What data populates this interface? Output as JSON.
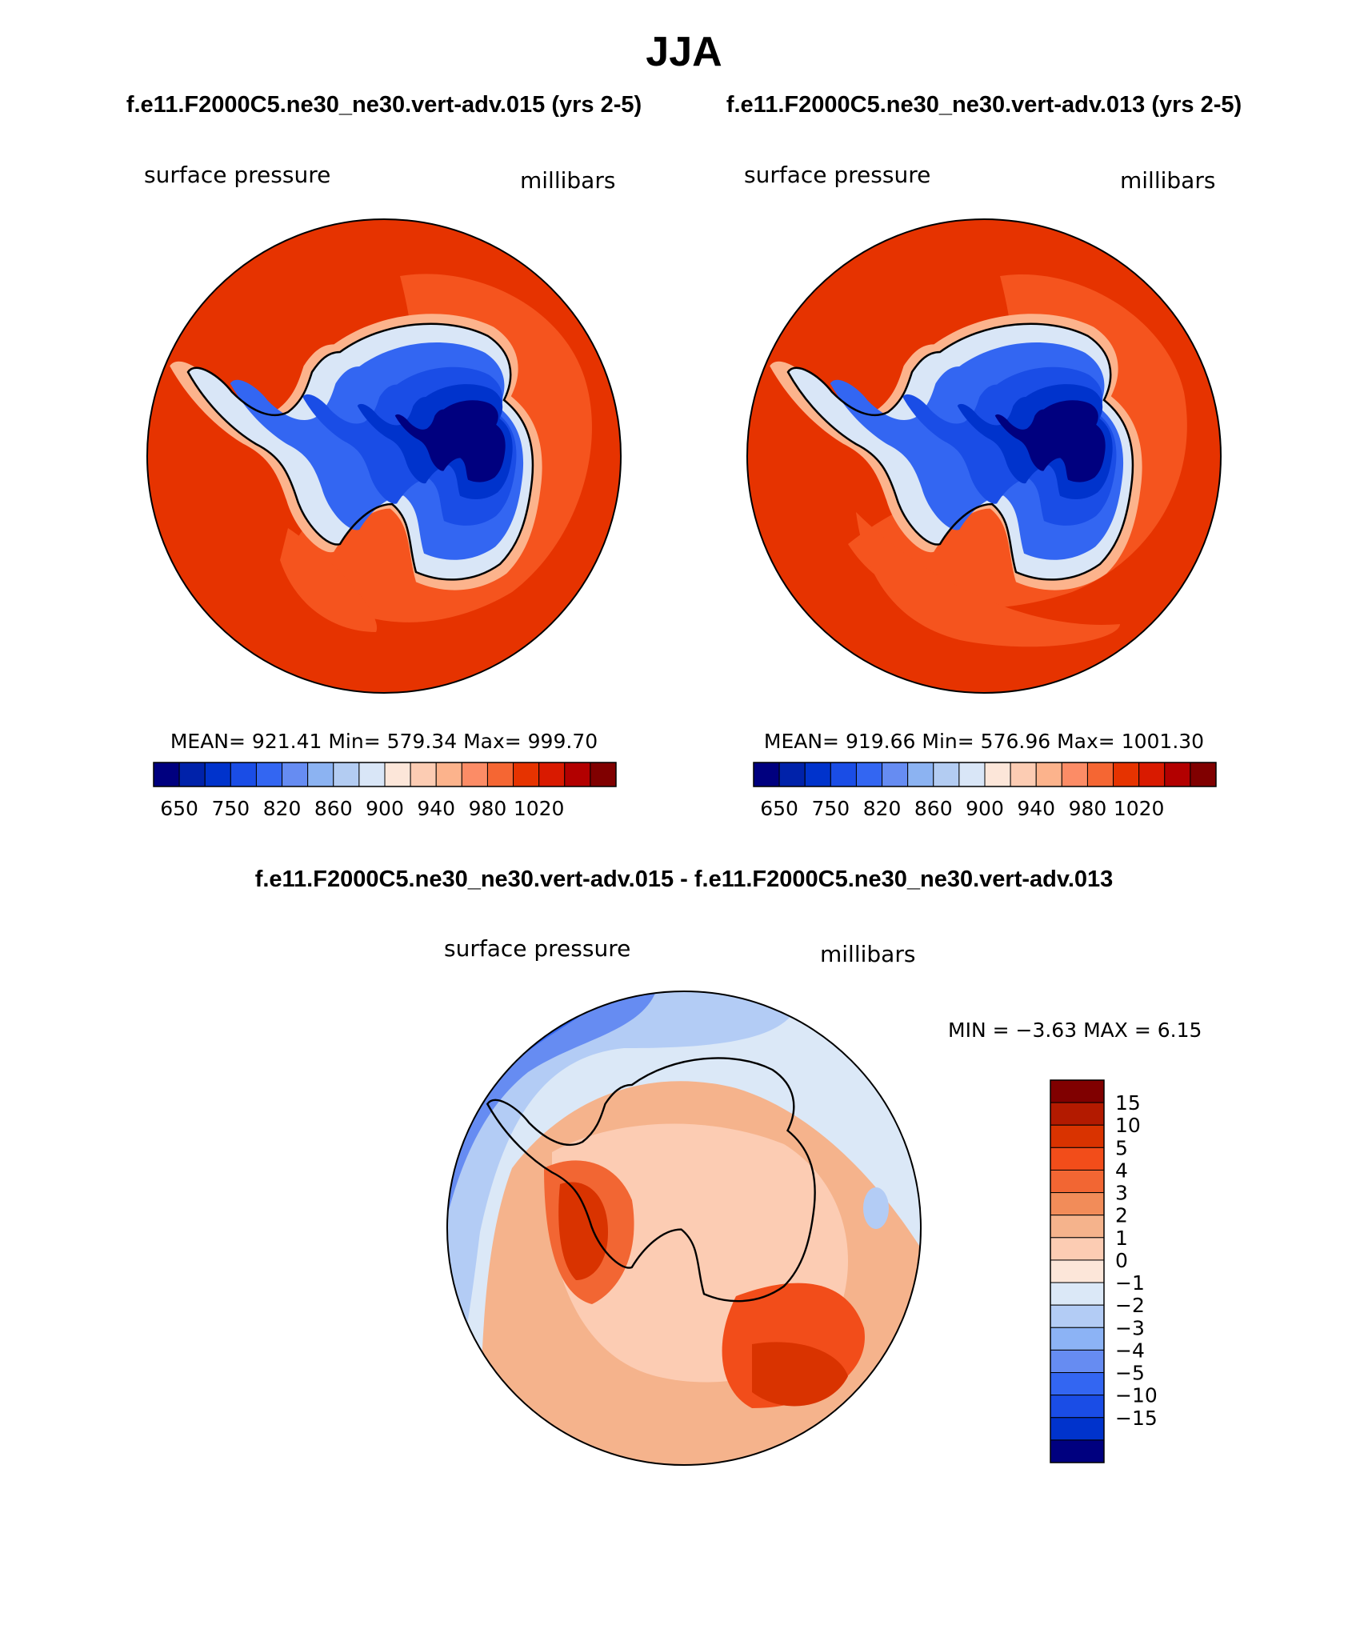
{
  "title": "JJA",
  "top_panels_header": {
    "left_case": "f.e11.F2000C5.ne30_ne30.vert-adv.015 (yrs 2-5)",
    "right_case": "f.e11.F2000C5.ne30_ne30.vert-adv.013 (yrs 2-5)"
  },
  "panel_left": {
    "variable": "surface pressure",
    "units": "millibars",
    "stats": {
      "mean_label": "MEAN=",
      "mean": "921.41",
      "min_label": "Min=",
      "min": "579.34",
      "max_label": "Max=",
      "max": "999.70"
    }
  },
  "panel_right": {
    "variable": "surface pressure",
    "units": "millibars",
    "stats": {
      "mean_label": "MEAN=",
      "mean": "919.66",
      "min_label": "Min=",
      "min": "576.96",
      "max_label": "Max=",
      "max": "1001.30"
    }
  },
  "colorbar_abs": {
    "colors": [
      "#00007f",
      "#0022aa",
      "#0033cc",
      "#1a4de6",
      "#3366f2",
      "#668cf2",
      "#8cb3f2",
      "#b3ccf2",
      "#d9e6f7",
      "#fce6d9",
      "#fcccb3",
      "#fcb38c",
      "#fc8c66",
      "#f56633",
      "#e63300",
      "#d91a00",
      "#b30000",
      "#800000"
    ],
    "labels": [
      "650",
      "750",
      "820",
      "860",
      "900",
      "940",
      "980",
      "1020"
    ]
  },
  "diff_panel": {
    "header": "f.e11.F2000C5.ne30_ne30.vert-adv.015 - f.e11.F2000C5.ne30_ne30.vert-adv.013",
    "variable": "surface pressure",
    "units": "millibars",
    "min_label": "MIN =",
    "min": "−3.63",
    "max_label": "MAX =",
    "max": "6.15"
  },
  "colorbar_diff": {
    "colors": [
      "#800000",
      "#b31a00",
      "#d93300",
      "#f24d1a",
      "#f26633",
      "#f28c59",
      "#f5b38c",
      "#fcccb3",
      "#fce6d9",
      "#dbe8f7",
      "#b3ccf5",
      "#8cb3f5",
      "#668cf2",
      "#3366f2",
      "#1a4de6",
      "#0033cc",
      "#00007f"
    ],
    "labels": [
      "15",
      "10",
      "5",
      "4",
      "3",
      "2",
      "1",
      "0",
      "−1",
      "−2",
      "−3",
      "−4",
      "−5",
      "−10",
      "−15"
    ]
  },
  "chart_data": [
    {
      "type": "heatmap",
      "projection": "south-polar-stereographic",
      "case": "f.e11.F2000C5.ne30_ne30.vert-adv.015 (yrs 2-5)",
      "variable": "surface pressure",
      "units": "millibars",
      "mean": 921.41,
      "min": 579.34,
      "max": 999.7,
      "contour_levels": [
        650,
        750,
        820,
        860,
        900,
        940,
        980,
        1020
      ]
    },
    {
      "type": "heatmap",
      "projection": "south-polar-stereographic",
      "case": "f.e11.F2000C5.ne30_ne30.vert-adv.013 (yrs 2-5)",
      "variable": "surface pressure",
      "units": "millibars",
      "mean": 919.66,
      "min": 576.96,
      "max": 1001.3,
      "contour_levels": [
        650,
        750,
        820,
        860,
        900,
        940,
        980,
        1020
      ]
    },
    {
      "type": "heatmap",
      "projection": "south-polar-stereographic",
      "case": "f.e11.F2000C5.ne30_ne30.vert-adv.015 - f.e11.F2000C5.ne30_ne30.vert-adv.013",
      "variable": "surface pressure",
      "units": "millibars",
      "min": -3.63,
      "max": 6.15,
      "contour_levels": [
        -15,
        -10,
        -5,
        -4,
        -3,
        -2,
        -1,
        0,
        1,
        2,
        3,
        4,
        5,
        10,
        15
      ]
    }
  ]
}
